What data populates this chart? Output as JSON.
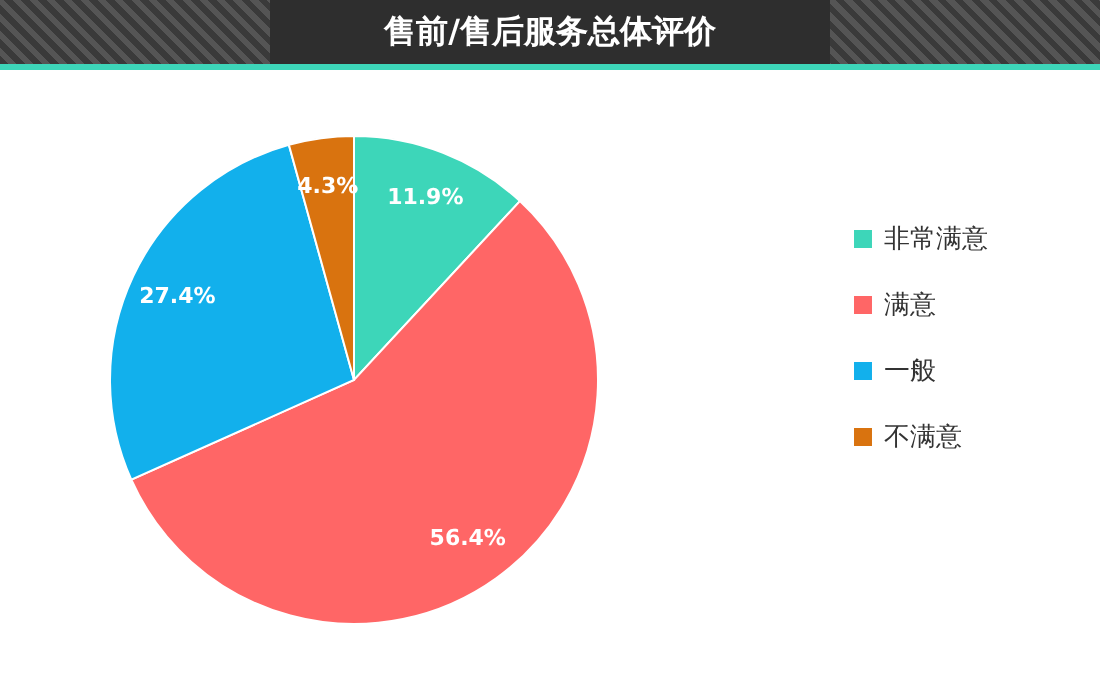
{
  "chart_data": {
    "type": "pie",
    "title": "售前/售后服务总体评价",
    "categories": [
      "非常满意",
      "满意",
      "一般",
      "不满意"
    ],
    "values": [
      11.9,
      56.4,
      27.4,
      4.3
    ],
    "colors": [
      "#3dd6b9",
      "#ff6666",
      "#12b0ec",
      "#d9730f"
    ],
    "value_labels": [
      "11.9%",
      "56.4%",
      "27.4%",
      "4.3%"
    ],
    "legend": "right"
  }
}
